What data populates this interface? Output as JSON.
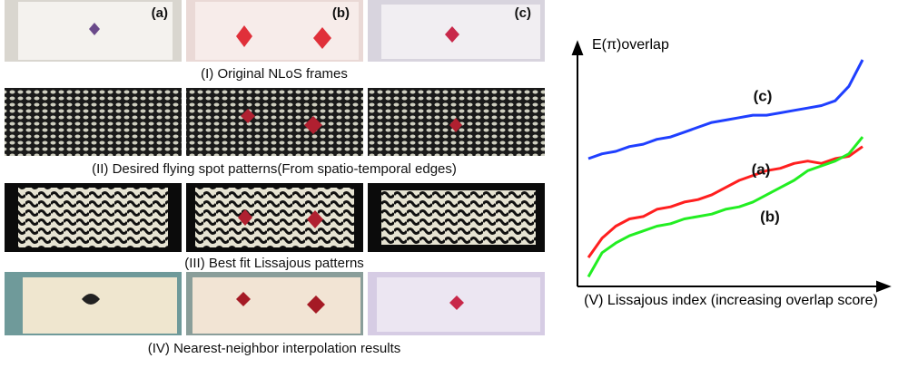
{
  "panel_labels": [
    "(a)",
    "(b)",
    "(c)"
  ],
  "row_captions": [
    "(I) Original NLoS frames",
    "(II) Desired flying spot patterns(From spatio-temporal edges)",
    "(III) Best fit Lissajous patterns",
    "(IV) Nearest-neighbor interpolation results"
  ],
  "chart_data": {
    "type": "line",
    "title": "E(π)overlap",
    "x_label": "(V) Lissajous index (increasing overlap score)",
    "ylim": [
      0,
      1
    ],
    "series": [
      {
        "name": "(c)",
        "color": "#1f3fff",
        "values": [
          0.53,
          0.55,
          0.56,
          0.58,
          0.59,
          0.61,
          0.62,
          0.64,
          0.66,
          0.68,
          0.69,
          0.7,
          0.71,
          0.71,
          0.72,
          0.73,
          0.74,
          0.75,
          0.77,
          0.83,
          0.94
        ]
      },
      {
        "name": "(a)",
        "color": "#ff1f1f",
        "values": [
          0.12,
          0.2,
          0.25,
          0.28,
          0.29,
          0.32,
          0.33,
          0.35,
          0.36,
          0.38,
          0.41,
          0.44,
          0.46,
          0.48,
          0.49,
          0.51,
          0.52,
          0.51,
          0.53,
          0.54,
          0.58
        ]
      },
      {
        "name": "(b)",
        "color": "#22ee22",
        "values": [
          0.04,
          0.14,
          0.18,
          0.21,
          0.23,
          0.25,
          0.26,
          0.28,
          0.29,
          0.3,
          0.32,
          0.33,
          0.35,
          0.38,
          0.41,
          0.44,
          0.48,
          0.5,
          0.52,
          0.55,
          0.62
        ]
      }
    ]
  }
}
